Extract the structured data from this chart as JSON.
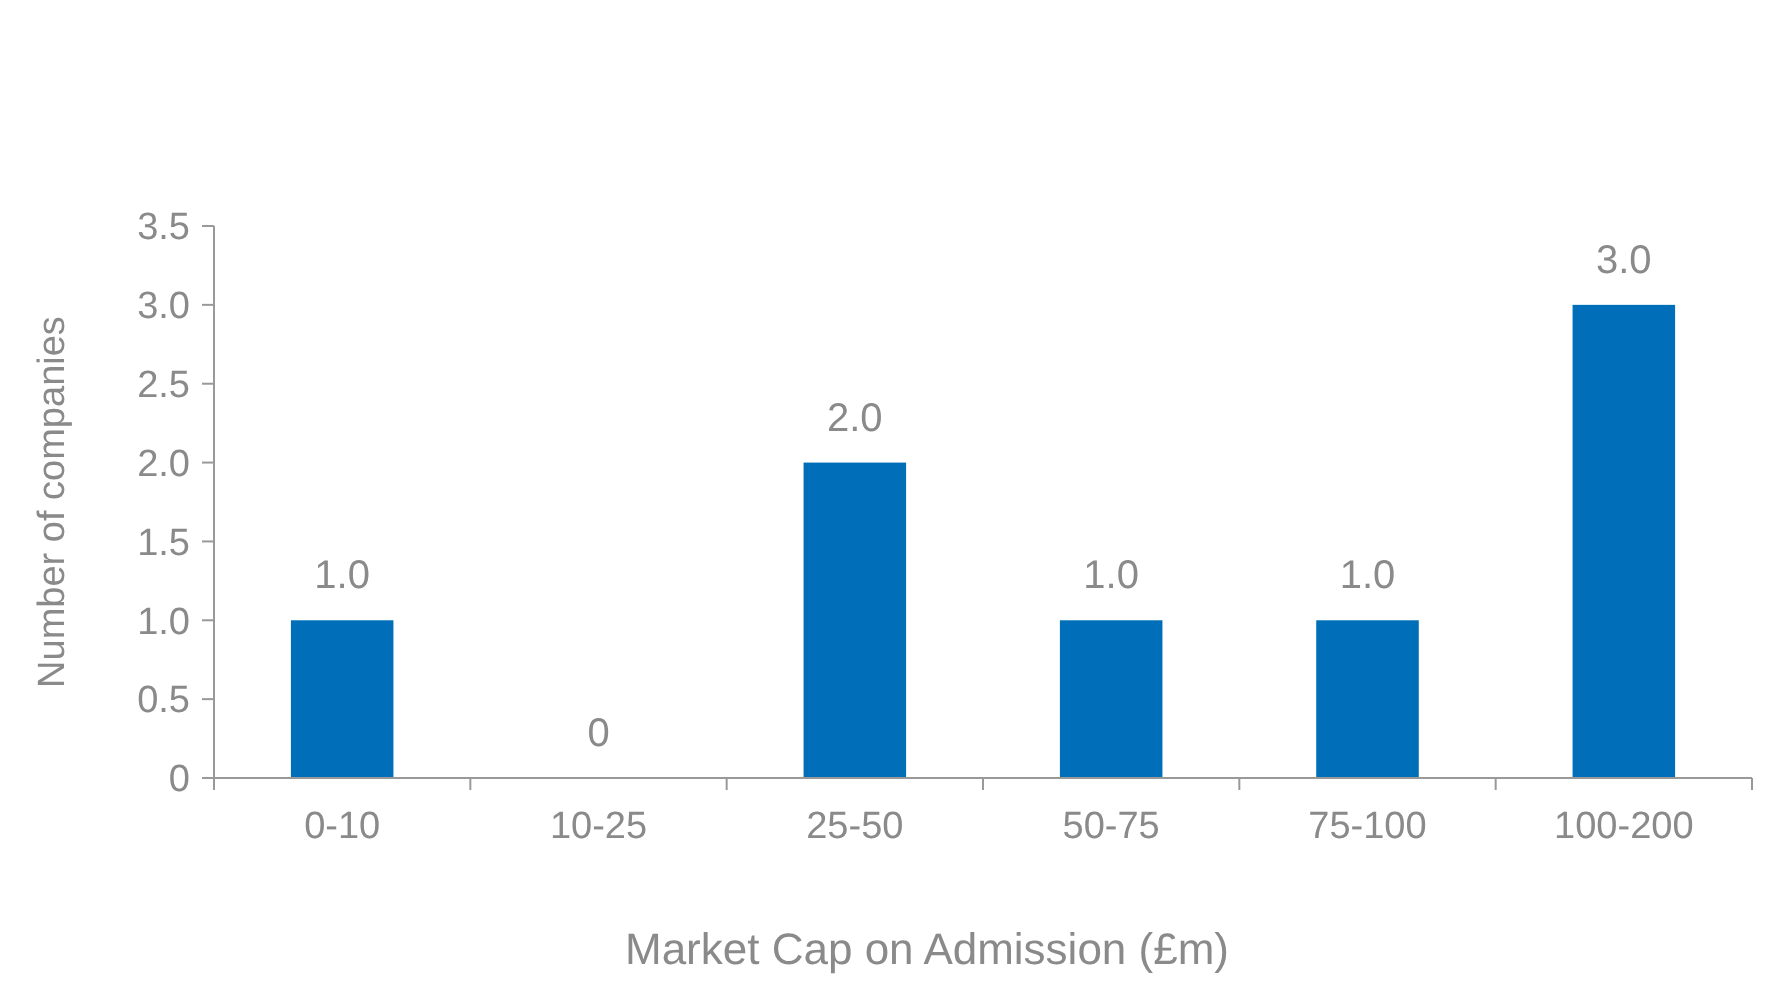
{
  "chart_data": {
    "type": "bar",
    "xlabel": "Market Cap on Admission (£m)",
    "ylabel": "Number of companies",
    "categories": [
      "0-10",
      "10-25",
      "25-50",
      "50-75",
      "75-100",
      "100-200"
    ],
    "values": [
      1,
      0,
      2,
      1,
      1,
      3
    ],
    "color": "#006eb9",
    "value_labels": [
      "1.0",
      "0",
      "2.0",
      "1.0",
      "1.0",
      "3.0"
    ],
    "ylim": [
      0,
      3.5
    ],
    "yticks": [
      {
        "value": 0,
        "label": "0"
      },
      {
        "value": 0.5,
        "label": "0.5"
      },
      {
        "value": 1,
        "label": "1.0"
      },
      {
        "value": 1.5,
        "label": "1.5"
      },
      {
        "value": 2,
        "label": "2.0"
      },
      {
        "value": 2.5,
        "label": "2.5"
      },
      {
        "value": 3,
        "label": "3.0"
      },
      {
        "value": 3.5,
        "label": "3.5"
      }
    ],
    "grid": false
  }
}
